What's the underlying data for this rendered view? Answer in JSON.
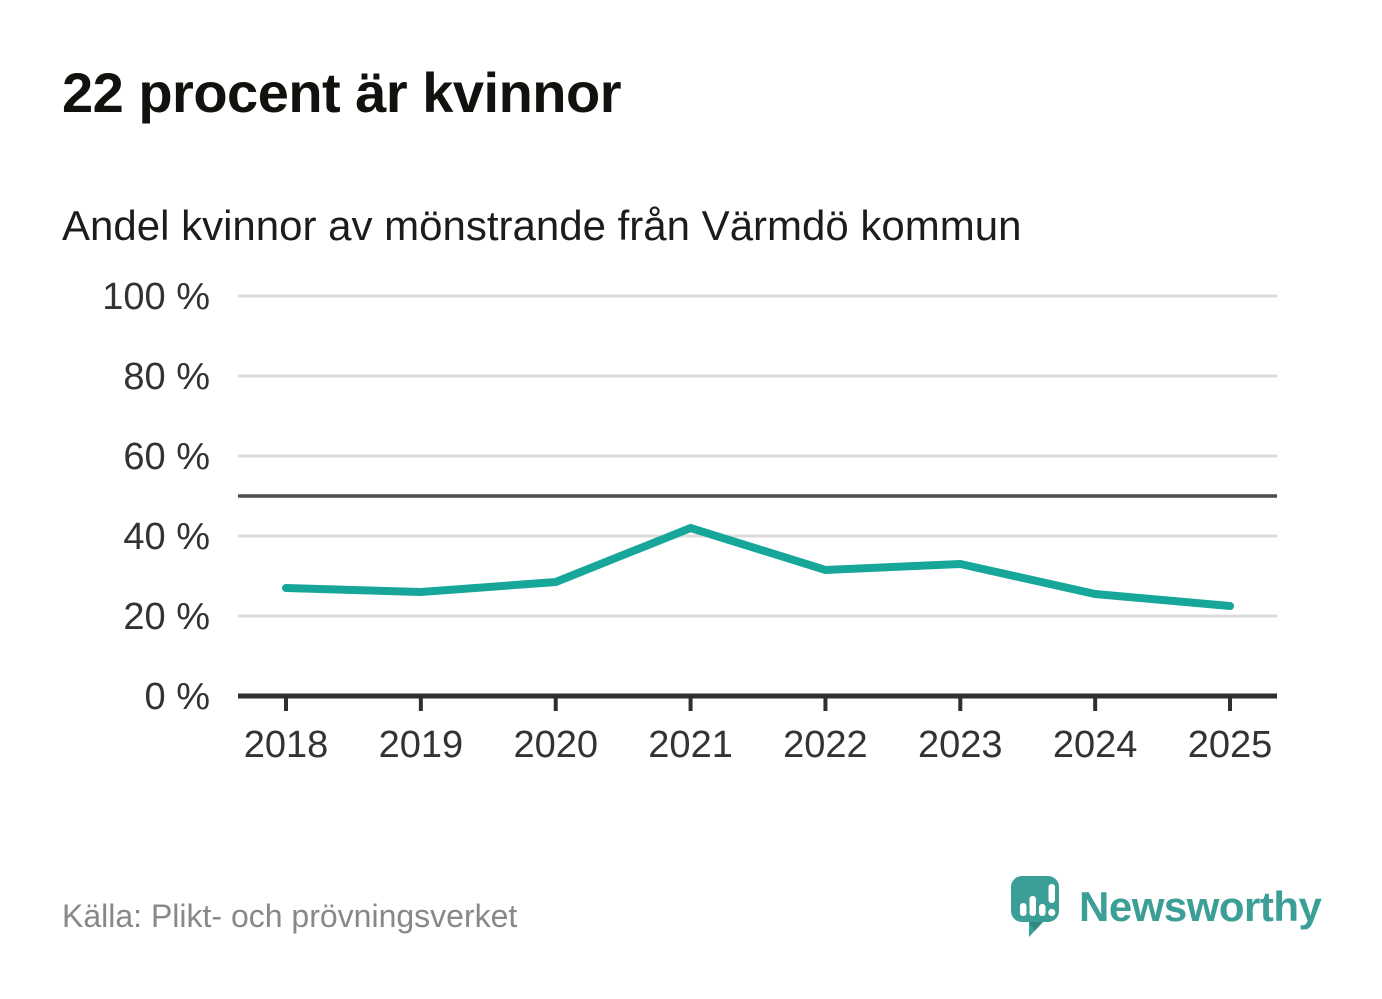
{
  "header": {
    "title": "22 procent är kvinnor",
    "subtitle": "Andel kvinnor av mönstrande från Värmdö kommun"
  },
  "chart_data": {
    "type": "line",
    "title": "22 procent är kvinnor",
    "subtitle": "Andel kvinnor av mönstrande från Värmdö kommun",
    "categories": [
      "2018",
      "2019",
      "2020",
      "2021",
      "2022",
      "2023",
      "2024",
      "2025"
    ],
    "series": [
      {
        "name": "Andel kvinnor",
        "values": [
          27,
          26,
          28.5,
          42,
          31.5,
          33,
          25.5,
          22.5
        ]
      }
    ],
    "xlabel": "",
    "ylabel": "",
    "ylim": [
      0,
      100
    ],
    "y_ticks": [
      0,
      20,
      40,
      60,
      80,
      100
    ],
    "y_tick_labels": [
      "0 %",
      "20 %",
      "40 %",
      "60 %",
      "80 %",
      "100 %"
    ],
    "reference_line": 50,
    "grid": true,
    "legend": "none",
    "unit": "%"
  },
  "footer": {
    "source": "Källa: Plikt- och prövningsverket",
    "brand": "Newsworthy"
  },
  "colors": {
    "line": "#16a69a",
    "grid": "#dcdcdc",
    "reference": "#4d4d4d",
    "axis": "#2f2f2f",
    "tick_label": "#333333",
    "title": "#10120e",
    "subtitle": "#1c1c1c",
    "source": "#888888",
    "brand": "#3b9e97"
  },
  "icons": {
    "logo": "newsworthy-bubble-barchart-icon"
  }
}
